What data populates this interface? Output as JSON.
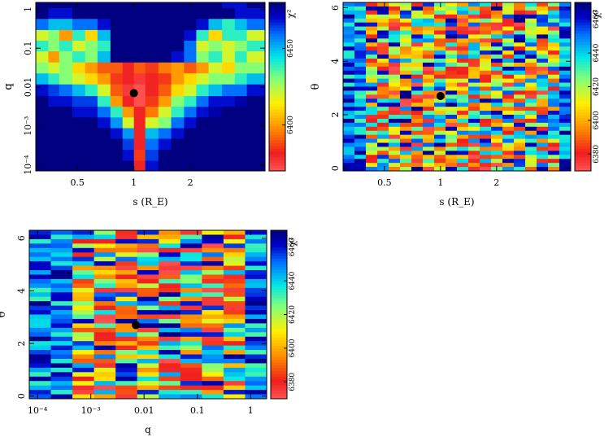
{
  "chart_data": [
    {
      "id": "panel-s-q",
      "type": "heatmap",
      "xlabel": "s (R_E)",
      "ylabel": "q",
      "x_scale": "log",
      "y_scale": "log",
      "xlim": [
        0.3,
        5.0
      ],
      "ylim": [
        7e-05,
        1.5
      ],
      "xticks": [
        {
          "v": 0.5,
          "label": "0.5"
        },
        {
          "v": 1,
          "label": "1"
        },
        {
          "v": 2,
          "label": "2"
        }
      ],
      "yticks": [
        {
          "v": 0.0001,
          "label": "10⁻⁴"
        },
        {
          "v": 0.001,
          "label": "10⁻³"
        },
        {
          "v": 0.01,
          "label": "0.01"
        },
        {
          "v": 0.1,
          "label": "0.1"
        },
        {
          "v": 1,
          "label": "1"
        }
      ],
      "colorbar": {
        "label": "χ²",
        "min": 6370,
        "max": 6480,
        "ticks": [
          {
            "v": 6400,
            "label": "6400"
          },
          {
            "v": 6450,
            "label": "6450"
          }
        ]
      },
      "best_fit": {
        "x": 1.0,
        "y": 0.007
      },
      "grid_x_edges": [
        0.3,
        0.35,
        0.4,
        0.47,
        0.55,
        0.64,
        0.75,
        0.87,
        1.0,
        1.15,
        1.35,
        1.58,
        1.85,
        2.15,
        2.5,
        2.95,
        3.45,
        4.0,
        5.0
      ],
      "grid_y_edges": [
        7e-05,
        0.00013,
        0.00025,
        0.00048,
        0.0009,
        0.0017,
        0.0032,
        0.006,
        0.012,
        0.023,
        0.044,
        0.085,
        0.16,
        0.3,
        0.58,
        1.1,
        1.5
      ],
      "values": [
        [
          6480,
          6480,
          6480,
          6480,
          6480,
          6480,
          6480,
          6480,
          6380,
          6470,
          6480,
          6480,
          6480,
          6480,
          6480,
          6480,
          6480,
          6480
        ],
        [
          6480,
          6480,
          6480,
          6480,
          6480,
          6480,
          6480,
          6470,
          6385,
          6465,
          6480,
          6480,
          6480,
          6480,
          6480,
          6480,
          6480,
          6480
        ],
        [
          6480,
          6480,
          6480,
          6480,
          6480,
          6480,
          6480,
          6465,
          6380,
          6460,
          6470,
          6480,
          6480,
          6480,
          6480,
          6480,
          6480,
          6480
        ],
        [
          6480,
          6480,
          6480,
          6480,
          6480,
          6480,
          6470,
          6455,
          6380,
          6450,
          6460,
          6470,
          6480,
          6480,
          6480,
          6480,
          6480,
          6480
        ],
        [
          6480,
          6480,
          6480,
          6480,
          6480,
          6470,
          6455,
          6420,
          6380,
          6420,
          6430,
          6460,
          6470,
          6480,
          6480,
          6480,
          6480,
          6480
        ],
        [
          6480,
          6480,
          6480,
          6470,
          6470,
          6460,
          6440,
          6400,
          6380,
          6395,
          6420,
          6440,
          6460,
          6470,
          6475,
          6480,
          6480,
          6480
        ],
        [
          6480,
          6470,
          6470,
          6465,
          6465,
          6440,
          6400,
          6380,
          6370,
          6385,
          6400,
          6430,
          6440,
          6460,
          6470,
          6470,
          6475,
          6480
        ],
        [
          6470,
          6465,
          6460,
          6450,
          6440,
          6420,
          6390,
          6375,
          6370,
          6380,
          6390,
          6410,
          6420,
          6440,
          6450,
          6460,
          6460,
          6470
        ],
        [
          6450,
          6440,
          6430,
          6420,
          6410,
          6400,
          6385,
          6380,
          6375,
          6380,
          6385,
          6400,
          6410,
          6420,
          6430,
          6430,
          6440,
          6450
        ],
        [
          6430,
          6420,
          6430,
          6410,
          6400,
          6390,
          6390,
          6380,
          6390,
          6385,
          6395,
          6400,
          6390,
          6400,
          6420,
          6410,
          6430,
          6430
        ],
        [
          6420,
          6400,
          6430,
          6440,
          6430,
          6450,
          6480,
          6480,
          6480,
          6480,
          6480,
          6470,
          6460,
          6430,
          6440,
          6420,
          6440,
          6420
        ],
        [
          6440,
          6430,
          6440,
          6420,
          6430,
          6440,
          6480,
          6480,
          6480,
          6480,
          6480,
          6480,
          6460,
          6420,
          6430,
          6420,
          6430,
          6440
        ],
        [
          6420,
          6430,
          6400,
          6440,
          6410,
          6450,
          6480,
          6480,
          6480,
          6480,
          6480,
          6480,
          6470,
          6440,
          6410,
          6440,
          6440,
          6420
        ],
        [
          6460,
          6450,
          6450,
          6460,
          6460,
          6470,
          6480,
          6480,
          6480,
          6480,
          6480,
          6480,
          6480,
          6470,
          6450,
          6440,
          6450,
          6460
        ],
        [
          6480,
          6470,
          6470,
          6480,
          6480,
          6480,
          6480,
          6480,
          6480,
          6480,
          6480,
          6480,
          6480,
          6480,
          6480,
          6480,
          6470,
          6470
        ],
        [
          6480,
          6480,
          6480,
          6480,
          6480,
          6480,
          6480,
          6480,
          6480,
          6480,
          6480,
          6480,
          6480,
          6480,
          6480,
          6470,
          6470,
          6480
        ]
      ]
    },
    {
      "id": "panel-s-theta",
      "type": "heatmap",
      "xlabel": "s (R_E)",
      "ylabel": "θ",
      "x_scale": "log",
      "y_scale": "linear",
      "xlim": [
        0.3,
        5.0
      ],
      "ylim": [
        -0.1,
        6.2
      ],
      "xticks": [
        {
          "v": 0.5,
          "label": "0.5"
        },
        {
          "v": 1,
          "label": "1"
        },
        {
          "v": 2,
          "label": "2"
        }
      ],
      "yticks": [
        {
          "v": 0,
          "label": "0"
        },
        {
          "v": 2,
          "label": "2"
        },
        {
          "v": 4,
          "label": "4"
        },
        {
          "v": 6,
          "label": "6"
        }
      ],
      "colorbar": {
        "label": "χ²",
        "min": 6370,
        "max": 6470,
        "ticks": [
          {
            "v": 6380,
            "label": "6380"
          },
          {
            "v": 6400,
            "label": "6400"
          },
          {
            "v": 6420,
            "label": "6420"
          },
          {
            "v": 6440,
            "label": "6440"
          },
          {
            "v": 6460,
            "label": "6460"
          }
        ]
      },
      "best_fit": {
        "x": 1.0,
        "y": 2.7
      },
      "pattern": {
        "cols": 20,
        "rows": 42,
        "seed": 7,
        "hot_rows": [
          3,
          6,
          9,
          17,
          38,
          40
        ],
        "hot_col_range": [
          8,
          13
        ]
      }
    },
    {
      "id": "panel-q-theta",
      "type": "heatmap",
      "xlabel": "q",
      "ylabel": "θ",
      "x_scale": "log",
      "y_scale": "linear",
      "xlim": [
        7e-05,
        2.0
      ],
      "ylim": [
        -0.1,
        6.3
      ],
      "xticks": [
        {
          "v": 0.0001,
          "label": "10⁻⁴"
        },
        {
          "v": 0.001,
          "label": "10⁻³"
        },
        {
          "v": 0.01,
          "label": "0.01"
        },
        {
          "v": 0.1,
          "label": "0.1"
        },
        {
          "v": 1,
          "label": "1"
        }
      ],
      "yticks": [
        {
          "v": 0,
          "label": "0"
        },
        {
          "v": 2,
          "label": "2"
        },
        {
          "v": 4,
          "label": "4"
        },
        {
          "v": 6,
          "label": "6"
        }
      ],
      "colorbar": {
        "label": "χ²",
        "min": 6370,
        "max": 6470,
        "ticks": [
          {
            "v": 6380,
            "label": "6380"
          },
          {
            "v": 6400,
            "label": "6400"
          },
          {
            "v": 6420,
            "label": "6420"
          },
          {
            "v": 6440,
            "label": "6440"
          },
          {
            "v": 6460,
            "label": "6460"
          }
        ]
      },
      "best_fit": {
        "x": 0.007,
        "y": 2.7
      },
      "pattern": {
        "cols": 11,
        "rows": 38,
        "seed": 13,
        "hot_rows": [
          4,
          8,
          13,
          19,
          24,
          35
        ],
        "hot_col_range": [
          3,
          9
        ]
      }
    }
  ]
}
